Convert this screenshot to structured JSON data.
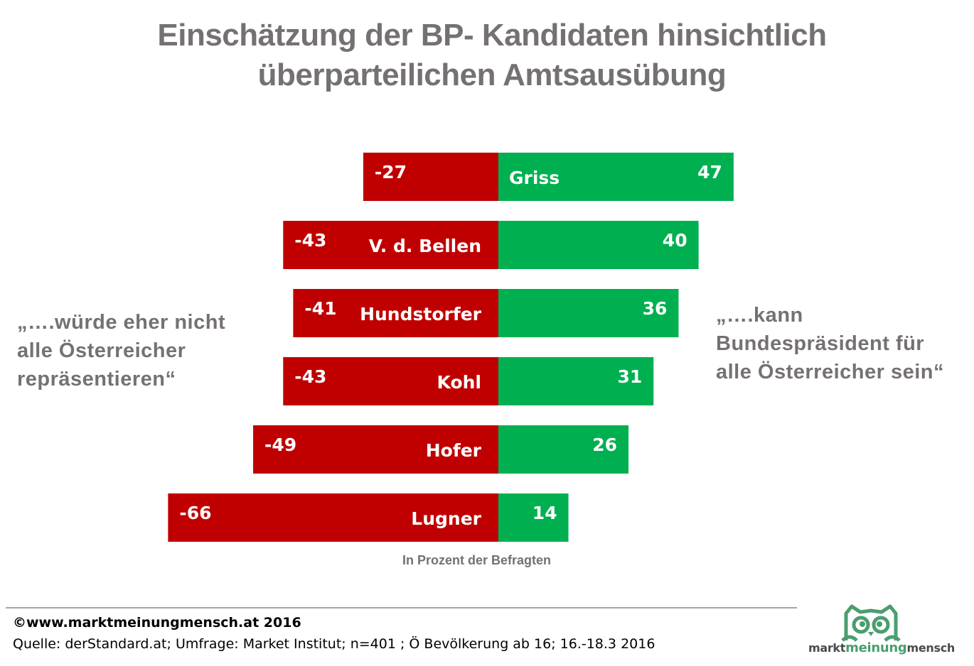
{
  "title_line1": "Einschätzung der BP- Kandidaten hinsichtlich",
  "title_line2": "überparteilichen Amtsausübung",
  "left_annotation": [
    "„….würde eher nicht",
    "alle Österreicher",
    "repräsentieren“"
  ],
  "right_annotation": [
    "„….kann",
    "Bundespräsident für",
    "alle Österreicher sein“"
  ],
  "note": "In Prozent der Befragten",
  "footer": {
    "copyright": "©www.marktmeinungmensch.at 2016",
    "source": "Quelle: derStandard.at; Umfrage: Market Institut; n=401 ; Ö Bevölkerung ab 16; 16.-18.3 2016"
  },
  "logo": {
    "part1": "markt",
    "part2": "meinung",
    "part3": "mensch",
    "color": "#4a9e6e"
  },
  "colors": {
    "negative": "#c00000",
    "positive": "#00b050"
  },
  "chart_data": {
    "type": "bar",
    "orientation": "horizontal-diverging",
    "title": "Einschätzung der BP- Kandidaten hinsichtlich überparteilichen Amtsausübung",
    "categories": [
      "Griss",
      "V. d. Bellen",
      "Hundstorfer",
      "Kohl",
      "Hofer",
      "Lugner"
    ],
    "series": [
      {
        "name": "würde eher nicht alle Österreicher repräsentieren",
        "values": [
          -27,
          -43,
          -41,
          -43,
          -49,
          -66
        ],
        "labels": [
          "-27",
          "-43",
          "-41",
          "-43",
          "-49",
          "-66"
        ]
      },
      {
        "name": "kann Bundespräsident für alle Österreicher sein",
        "values": [
          47,
          40,
          36,
          31,
          26,
          14
        ],
        "labels": [
          "47",
          "40",
          "36",
          "31",
          "26",
          "14"
        ]
      }
    ],
    "xlabel": "In Prozent der Befragten",
    "ylabel": "",
    "xlim": [
      -66,
      47
    ],
    "grid": false,
    "legend": "none"
  }
}
